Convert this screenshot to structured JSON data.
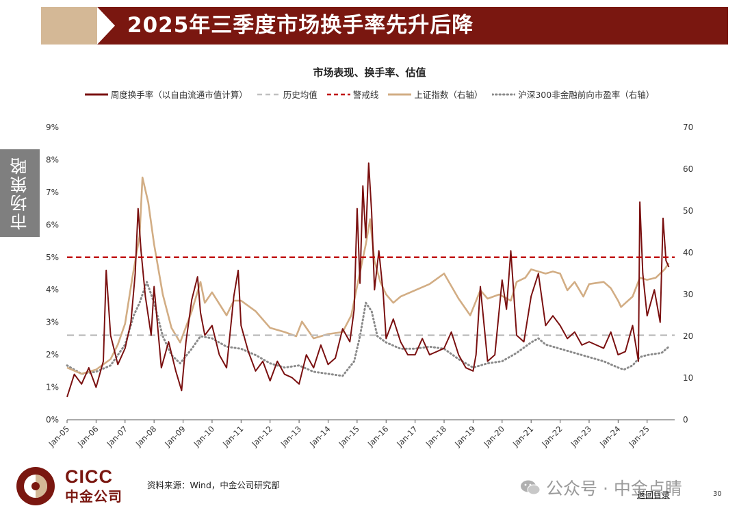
{
  "header": {
    "title": "2025年三季度市场换手率先升后降"
  },
  "sidebar": {
    "label": "市场策略"
  },
  "chart_data": {
    "type": "line",
    "title": "市场表现、换手率、估值",
    "categories": [
      "Jan-05",
      "Jan-06",
      "Jan-07",
      "Jan-08",
      "Jan-09",
      "Jan-10",
      "Jan-11",
      "Jan-12",
      "Jan-13",
      "Jan-14",
      "Jan-15",
      "Jan-16",
      "Jan-17",
      "Jan-18",
      "Jan-19",
      "Jan-20",
      "Jan-21",
      "Jan-22",
      "Jan-23",
      "Jan-24",
      "Jan-25"
    ],
    "y_left": {
      "ylim": [
        0,
        9
      ],
      "ticks": [
        "0%",
        "1%",
        "2%",
        "3%",
        "4%",
        "5%",
        "6%",
        "7%",
        "8%",
        "9%"
      ]
    },
    "y_right": {
      "ylim": [
        0,
        70
      ],
      "ticks": [
        "0",
        "10",
        "20",
        "30",
        "40",
        "50",
        "60",
        "70"
      ]
    },
    "grid": false,
    "legend_position": "top",
    "series": [
      {
        "name": "周度换手率（以自由流通市值计算）",
        "axis": "left",
        "style": "solid",
        "color": "#7a1010",
        "x": [
          2005.0,
          2005.25,
          2005.5,
          2005.75,
          2006.0,
          2006.25,
          2006.35,
          2006.5,
          2006.75,
          2007.0,
          2007.2,
          2007.35,
          2007.45,
          2007.55,
          2007.7,
          2007.9,
          2008.0,
          2008.25,
          2008.5,
          2008.75,
          2008.95,
          2009.1,
          2009.3,
          2009.5,
          2009.6,
          2009.75,
          2010.0,
          2010.25,
          2010.5,
          2010.75,
          2010.9,
          2011.0,
          2011.25,
          2011.5,
          2011.75,
          2012.0,
          2012.25,
          2012.5,
          2012.75,
          2013.0,
          2013.25,
          2013.5,
          2013.75,
          2014.0,
          2014.25,
          2014.5,
          2014.75,
          2014.9,
          2015.0,
          2015.1,
          2015.2,
          2015.3,
          2015.4,
          2015.5,
          2015.6,
          2015.75,
          2015.9,
          2016.0,
          2016.25,
          2016.5,
          2016.75,
          2017.0,
          2017.25,
          2017.5,
          2017.75,
          2018.0,
          2018.25,
          2018.5,
          2018.75,
          2019.0,
          2019.1,
          2019.25,
          2019.5,
          2019.75,
          2020.0,
          2020.15,
          2020.3,
          2020.5,
          2020.75,
          2021.0,
          2021.25,
          2021.5,
          2021.75,
          2022.0,
          2022.25,
          2022.5,
          2022.75,
          2023.0,
          2023.25,
          2023.5,
          2023.75,
          2024.0,
          2024.25,
          2024.5,
          2024.7,
          2024.75,
          2024.85,
          2025.0,
          2025.25,
          2025.45,
          2025.55,
          2025.65,
          2025.75
        ],
        "y": [
          0.7,
          1.4,
          1.1,
          1.6,
          1.0,
          1.8,
          4.6,
          2.6,
          1.7,
          2.2,
          3.0,
          4.5,
          6.5,
          5.2,
          3.8,
          2.6,
          4.1,
          1.6,
          2.4,
          1.5,
          0.9,
          2.4,
          3.7,
          4.4,
          3.3,
          2.6,
          2.9,
          2.0,
          1.6,
          3.8,
          4.6,
          2.9,
          2.1,
          1.5,
          1.8,
          1.2,
          1.8,
          1.4,
          1.3,
          1.1,
          2.0,
          1.6,
          2.3,
          1.7,
          1.9,
          2.8,
          2.4,
          3.4,
          6.5,
          4.2,
          7.2,
          5.6,
          7.9,
          6.4,
          4.0,
          5.2,
          3.9,
          2.5,
          3.1,
          2.4,
          2.0,
          2.0,
          2.5,
          2.0,
          2.1,
          2.2,
          2.7,
          2.0,
          1.6,
          1.5,
          2.0,
          4.1,
          1.8,
          2.0,
          4.3,
          3.4,
          5.2,
          2.6,
          2.4,
          3.8,
          4.5,
          2.9,
          3.2,
          2.9,
          2.5,
          2.7,
          2.3,
          2.4,
          2.3,
          2.2,
          2.7,
          2.0,
          2.1,
          2.9,
          1.8,
          6.7,
          4.5,
          3.2,
          4.0,
          3.0,
          6.2,
          4.9,
          4.7
        ]
      },
      {
        "name": "历史均值",
        "axis": "left",
        "style": "dashed",
        "color": "#c0c0c0",
        "value": 2.6
      },
      {
        "name": "警戒线",
        "axis": "left",
        "style": "dashed",
        "color": "#c00000",
        "value": 5.0
      },
      {
        "name": "上证指数（右轴）",
        "axis": "right",
        "style": "solid",
        "color": "#d2ad84",
        "x": [
          2005.0,
          2005.5,
          2006.0,
          2006.5,
          2006.75,
          2007.0,
          2007.25,
          2007.5,
          2007.6,
          2007.8,
          2008.0,
          2008.3,
          2008.6,
          2008.9,
          2009.3,
          2009.6,
          2009.75,
          2010.0,
          2010.5,
          2010.75,
          2011.0,
          2011.5,
          2012.0,
          2012.5,
          2012.9,
          2013.1,
          2013.5,
          2014.0,
          2014.5,
          2014.8,
          2015.0,
          2015.3,
          2015.45,
          2015.6,
          2015.8,
          2016.0,
          2016.25,
          2016.5,
          2017.0,
          2017.5,
          2018.0,
          2018.5,
          2018.9,
          2019.25,
          2019.5,
          2019.9,
          2020.3,
          2020.5,
          2020.8,
          2021.0,
          2021.5,
          2021.75,
          2022.0,
          2022.25,
          2022.5,
          2022.8,
          2023.0,
          2023.5,
          2023.75,
          2024.0,
          2024.1,
          2024.5,
          2024.75,
          2025.0,
          2025.3,
          2025.6,
          2025.75
        ],
        "y": [
          12.5,
          11.0,
          12.0,
          14.5,
          18.0,
          23.0,
          34.0,
          44.0,
          58.0,
          52.0,
          42.0,
          30.0,
          22.0,
          18.5,
          26.0,
          33.0,
          28.0,
          30.5,
          25.0,
          28.5,
          28.5,
          26.0,
          22.0,
          21.0,
          20.0,
          23.5,
          19.5,
          20.5,
          21.0,
          25.0,
          32.0,
          42.0,
          48.0,
          38.0,
          33.0,
          30.0,
          28.0,
          29.5,
          31.0,
          32.5,
          35.0,
          29.0,
          25.0,
          31.0,
          29.0,
          30.0,
          28.5,
          33.0,
          34.0,
          36.0,
          35.0,
          35.5,
          35.0,
          31.0,
          33.0,
          29.5,
          32.5,
          33.0,
          31.5,
          28.5,
          27.0,
          29.5,
          34.0,
          33.5,
          34.0,
          36.0,
          37.5
        ]
      },
      {
        "name": "沪深300非金融前向市盈率（右轴）",
        "axis": "right",
        "style": "dotted",
        "color": "#8a8a8a",
        "x": [
          2005.0,
          2005.5,
          2006.0,
          2006.5,
          2007.0,
          2007.3,
          2007.5,
          2007.75,
          2008.0,
          2008.3,
          2008.6,
          2008.9,
          2009.3,
          2009.6,
          2010.0,
          2010.5,
          2011.0,
          2011.5,
          2012.0,
          2012.5,
          2013.0,
          2013.5,
          2014.0,
          2014.5,
          2014.9,
          2015.1,
          2015.3,
          2015.5,
          2015.7,
          2016.0,
          2016.5,
          2017.0,
          2017.5,
          2018.0,
          2018.5,
          2019.0,
          2019.5,
          2020.0,
          2020.5,
          2021.0,
          2021.25,
          2021.5,
          2022.0,
          2022.5,
          2023.0,
          2023.5,
          2024.0,
          2024.2,
          2024.5,
          2024.75,
          2025.0,
          2025.5,
          2025.75
        ],
        "y": [
          13.0,
          11.0,
          11.5,
          13.0,
          18.0,
          25.0,
          28.0,
          33.0,
          28.0,
          20.0,
          15.5,
          13.5,
          17.0,
          20.0,
          19.5,
          17.5,
          17.0,
          15.5,
          13.5,
          12.5,
          13.0,
          11.5,
          11.0,
          10.5,
          14.0,
          20.0,
          28.0,
          26.0,
          20.0,
          18.5,
          17.0,
          17.0,
          17.5,
          17.0,
          14.5,
          12.5,
          13.5,
          14.0,
          16.0,
          18.5,
          19.5,
          18.0,
          17.0,
          16.0,
          15.0,
          14.0,
          12.5,
          12.0,
          13.0,
          15.0,
          15.5,
          16.0,
          17.5
        ]
      }
    ]
  },
  "footer": {
    "logo_en": "CICC",
    "logo_cn": "中金公司",
    "source": "资料来源：Wind，中金公司研究部",
    "watermark_account": "公众号 · 中金点睛",
    "back_link": "返回目录",
    "page_number": "30"
  }
}
